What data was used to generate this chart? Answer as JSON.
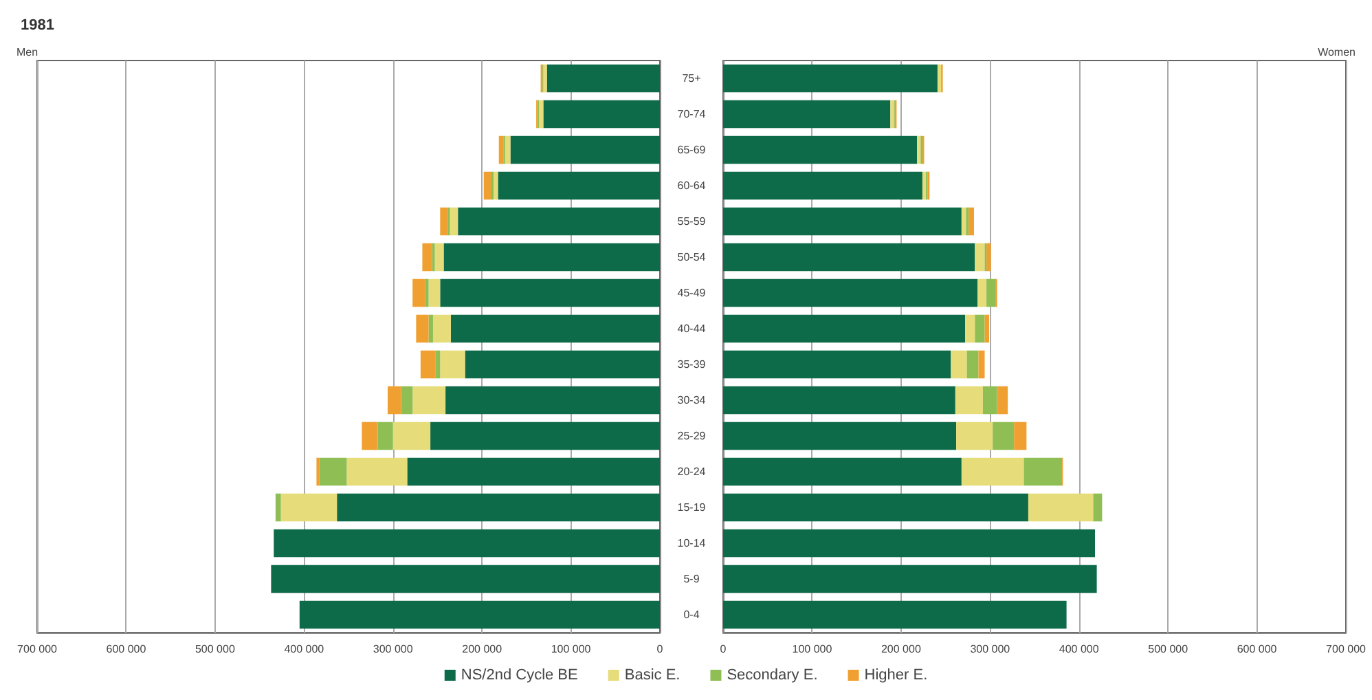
{
  "chart_data": [
    {
      "type": "bar",
      "orientation": "horizontal",
      "stacked": true,
      "title": "1981",
      "xlabel": "Men",
      "categories": [
        "75+",
        "70-74",
        "65-69",
        "60-64",
        "55-59",
        "50-54",
        "45-49",
        "40-44",
        "35-39",
        "30-34",
        "25-29",
        "20-24",
        "15-19",
        "10-14",
        "5-9",
        "0-4"
      ],
      "series": [
        {
          "name": "NS/2nd Cycle BE",
          "color": "#0e6b4a",
          "values": [
            127000,
            131000,
            168000,
            182000,
            227000,
            243000,
            247000,
            235000,
            219000,
            241000,
            258000,
            284000,
            363000,
            434000,
            437000,
            405000
          ]
        },
        {
          "name": "Basic E.",
          "color": "#e6dc7a",
          "values": [
            4000,
            5000,
            6000,
            5000,
            9000,
            10000,
            13000,
            20000,
            28000,
            37000,
            42000,
            68000,
            63000,
            0,
            0,
            0
          ]
        },
        {
          "name": "Secondary E.",
          "color": "#8fbf54",
          "values": [
            1000,
            1000,
            2000,
            3000,
            3000,
            3000,
            4000,
            5000,
            5000,
            13000,
            17000,
            31000,
            6000,
            0,
            0,
            0
          ]
        },
        {
          "name": "Higher E.",
          "color": "#f0a030",
          "values": [
            2000,
            2000,
            5000,
            8000,
            8000,
            11000,
            14000,
            14000,
            17000,
            15000,
            18000,
            3000,
            0,
            0,
            0,
            0
          ]
        }
      ],
      "xlim": [
        700000,
        0
      ],
      "xticks": [
        {
          "value": 0,
          "label": "0"
        },
        {
          "value": 100000,
          "label": "100 000"
        },
        {
          "value": 200000,
          "label": "200 000"
        },
        {
          "value": 300000,
          "label": "300 000"
        },
        {
          "value": 400000,
          "label": "400 000"
        },
        {
          "value": 500000,
          "label": "500 000"
        },
        {
          "value": 600000,
          "label": "600 000"
        },
        {
          "value": 700000,
          "label": "700 000"
        }
      ],
      "grid": "x",
      "legend": "bottom"
    },
    {
      "type": "bar",
      "orientation": "horizontal",
      "stacked": true,
      "xlabel": "Women",
      "categories": [
        "75+",
        "70-74",
        "65-69",
        "60-64",
        "55-59",
        "50-54",
        "45-49",
        "40-44",
        "35-39",
        "30-34",
        "25-29",
        "20-24",
        "15-19",
        "10-14",
        "5-9",
        "0-4"
      ],
      "series": [
        {
          "name": "NS/2nd Cycle BE",
          "color": "#0e6b4a",
          "values": [
            241000,
            188000,
            218000,
            224000,
            268000,
            283000,
            286000,
            272000,
            256000,
            261000,
            262000,
            268000,
            343000,
            418000,
            420000,
            386000
          ]
        },
        {
          "name": "Basic E.",
          "color": "#e6dc7a",
          "values": [
            4000,
            4000,
            4000,
            4000,
            5000,
            11000,
            10000,
            11000,
            18000,
            31000,
            41000,
            70000,
            73000,
            0,
            0,
            0
          ]
        },
        {
          "name": "Secondary E.",
          "color": "#8fbf54",
          "values": [
            1000,
            1000,
            2000,
            2000,
            3000,
            2000,
            10000,
            11000,
            13000,
            16000,
            24000,
            43000,
            10000,
            0,
            0,
            0
          ]
        },
        {
          "name": "Higher E.",
          "color": "#f0a030",
          "values": [
            1000,
            2000,
            2000,
            2000,
            6000,
            5000,
            2000,
            5000,
            7000,
            12000,
            14000,
            1000,
            0,
            0,
            0,
            0
          ]
        }
      ],
      "xlim": [
        0,
        700000
      ],
      "xticks": [
        {
          "value": 0,
          "label": "0"
        },
        {
          "value": 100000,
          "label": "100 000"
        },
        {
          "value": 200000,
          "label": "200 000"
        },
        {
          "value": 300000,
          "label": "300 000"
        },
        {
          "value": 400000,
          "label": "400 000"
        },
        {
          "value": 500000,
          "label": "500 000"
        },
        {
          "value": 600000,
          "label": "600 000"
        },
        {
          "value": 700000,
          "label": "700 000"
        }
      ],
      "grid": "x",
      "tick_labels": "x"
    }
  ]
}
